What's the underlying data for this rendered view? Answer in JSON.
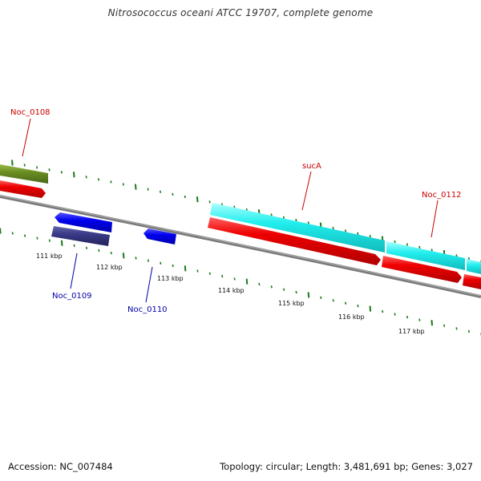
{
  "title": "Nitrosococcus oceani ATCC 19707, complete genome",
  "footer": {
    "accession": "Accession: NC_007484",
    "summary": "Topology: circular; Length: 3,481,691 bp; Genes: 3,027"
  },
  "colors": {
    "backbone": "#808080",
    "gc_skew_tick": "#1a7a1a",
    "gene_forward_red": "#ee0000",
    "gene_cyan": "#22eeee",
    "gene_olive": "#6b8e23",
    "gene_blue": "#0000ee",
    "gene_navy": "#333388",
    "label_red": "#cc0000",
    "label_blue": "#0000aa"
  },
  "genes": [
    {
      "name": "Noc_0108",
      "strand": "forward"
    },
    {
      "name": "sucA",
      "strand": "forward"
    },
    {
      "name": "Noc_0112",
      "strand": "forward"
    },
    {
      "name": "Noc_0109",
      "strand": "reverse"
    },
    {
      "name": "Noc_0110",
      "strand": "reverse"
    }
  ],
  "ticks": [
    "111 kbp",
    "112 kbp",
    "113 kbp",
    "114 kbp",
    "115 kbp",
    "116 kbp",
    "117 kbp"
  ]
}
